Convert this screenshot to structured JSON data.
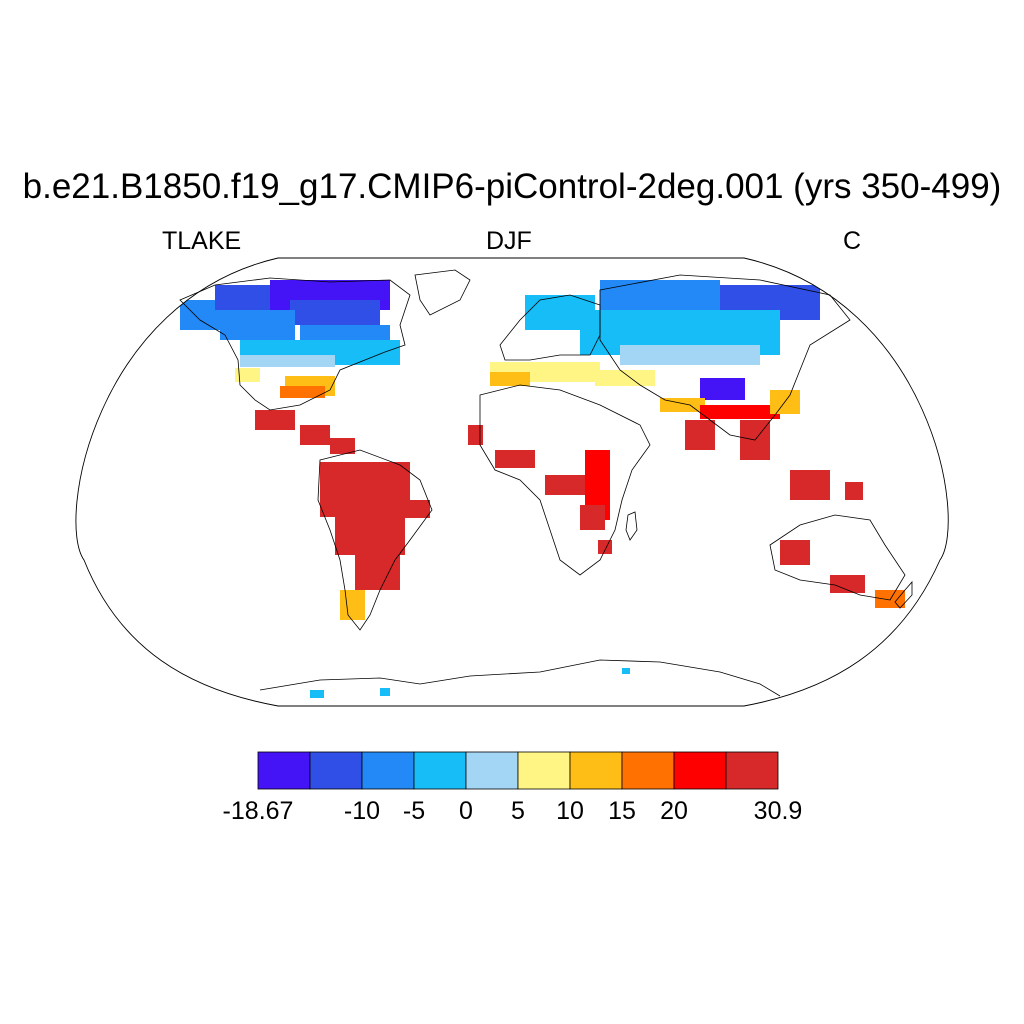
{
  "title": "b.e21.B1850.f19_g17.CMIP6-piControl-2deg.001 (yrs 350-499)",
  "subtitle_left": "TLAKE",
  "subtitle_center": "DJF",
  "subtitle_right": "C",
  "colorbar": {
    "colors": [
      "#4514f6",
      "#2f4fe6",
      "#2289f6",
      "#16bdf6",
      "#a3d5f5",
      "#fff584",
      "#ffbe16",
      "#ff7100",
      "#ff0000",
      "#d7292a"
    ],
    "labels": [
      "-18.67",
      "-10",
      "-5",
      "0",
      "5",
      "10",
      "15",
      "20",
      "30.9"
    ],
    "label_edges": [
      0,
      2,
      3,
      4,
      5,
      6,
      7,
      8,
      10
    ]
  },
  "map": {
    "projection": "robinson",
    "ocean_color": "#ffffff",
    "coastline_color": "#000000"
  }
}
